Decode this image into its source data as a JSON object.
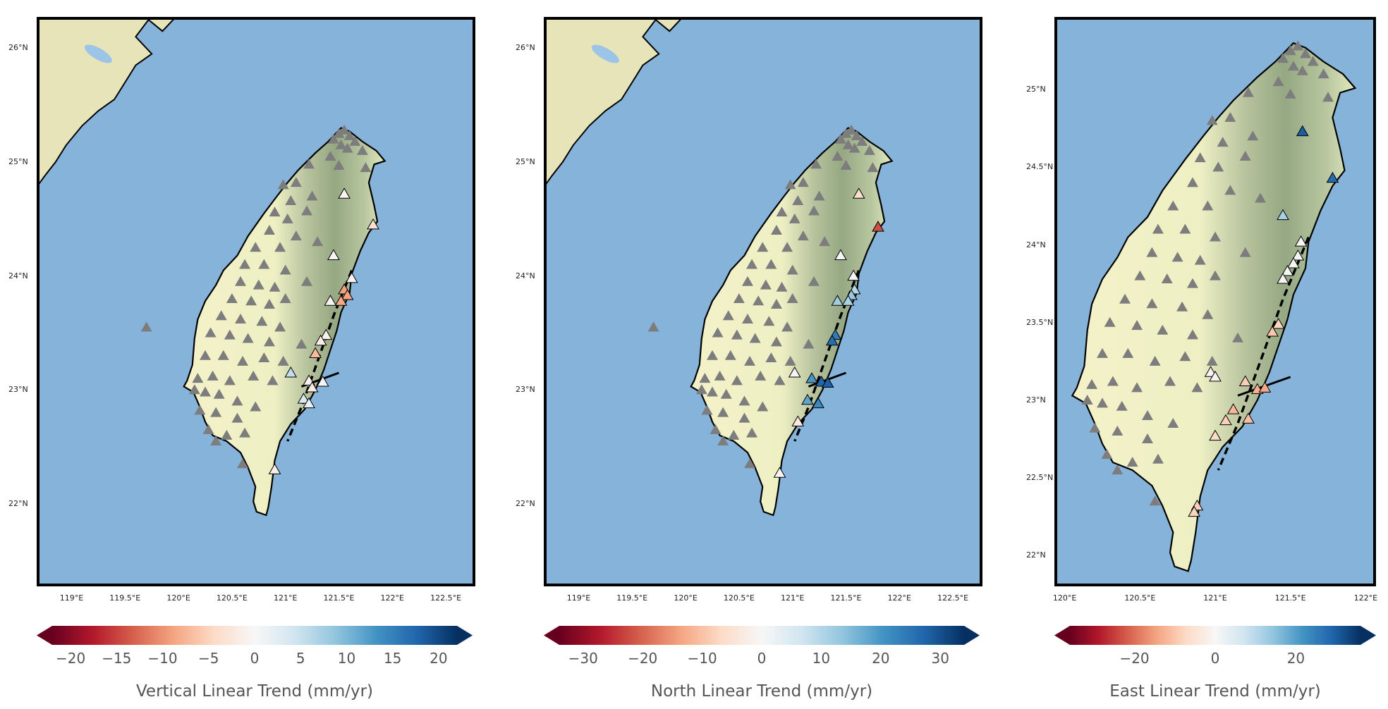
{
  "colors": {
    "ocean": "#86b3d9",
    "land": "#f3f0c7",
    "relief": "#9fae86",
    "lake": "#9cc4e6",
    "station_gray": "#7d7d7d",
    "ramp": [
      "#67001f",
      "#b2182b",
      "#d6604d",
      "#f4a582",
      "#fddbc7",
      "#f7f7f7",
      "#d1e5f0",
      "#92c5de",
      "#4393c3",
      "#2166ac",
      "#053061"
    ]
  },
  "panels": [
    {
      "id": "vertical",
      "lon_ticks": [
        "119°E",
        "119.5°E",
        "120°E",
        "120.5°E",
        "121°E",
        "121.5°E",
        "122°E",
        "122.5°E"
      ],
      "lat_ticks": [
        "22°N",
        "23°N",
        "24°N",
        "25°N",
        "26°N"
      ],
      "colorbar": {
        "ticks": [
          "−20",
          "−15",
          "−10",
          "−5",
          "0",
          "5",
          "10",
          "15",
          "20"
        ],
        "label": "Vertical Linear Trend (mm/yr)"
      },
      "colored_stations": [
        {
          "lon": 121.55,
          "lat": 24.72,
          "v": 0.5
        },
        {
          "lon": 121.82,
          "lat": 24.45,
          "v": 3.5
        },
        {
          "lon": 121.45,
          "lat": 24.18,
          "v": 0.5
        },
        {
          "lon": 121.62,
          "lat": 23.98,
          "v": 0.5
        },
        {
          "lon": 121.55,
          "lat": 23.88,
          "v": 9
        },
        {
          "lon": 121.58,
          "lat": 23.83,
          "v": 9
        },
        {
          "lon": 121.52,
          "lat": 23.78,
          "v": 8.5
        },
        {
          "lon": 121.42,
          "lat": 23.78,
          "v": 0.5
        },
        {
          "lon": 121.38,
          "lat": 23.48,
          "v": 1
        },
        {
          "lon": 121.33,
          "lat": 23.43,
          "v": 1.5
        },
        {
          "lon": 121.28,
          "lat": 23.32,
          "v": 7
        },
        {
          "lon": 121.05,
          "lat": 23.15,
          "v": -5.5
        },
        {
          "lon": 121.35,
          "lat": 23.07,
          "v": -0.5
        },
        {
          "lon": 121.22,
          "lat": 23.08,
          "v": 1
        },
        {
          "lon": 121.25,
          "lat": 23.02,
          "v": 2
        },
        {
          "lon": 121.17,
          "lat": 22.92,
          "v": -3.5
        },
        {
          "lon": 121.22,
          "lat": 22.88,
          "v": -1.5
        },
        {
          "lon": 120.9,
          "lat": 22.3,
          "v": 1.5
        }
      ]
    },
    {
      "id": "north",
      "lon_ticks": [
        "119°E",
        "119.5°E",
        "120°E",
        "120.5°E",
        "121°E",
        "121.5°E",
        "122°E",
        "122.5°E"
      ],
      "lat_ticks": [
        "22°N",
        "23°N",
        "24°N",
        "25°N",
        "26°N"
      ],
      "colorbar": {
        "ticks": [
          "−30",
          "−20",
          "−10",
          "0",
          "10",
          "20",
          "30"
        ],
        "label": "North Linear Trend (mm/yr)"
      },
      "colored_stations": [
        {
          "lon": 121.62,
          "lat": 24.72,
          "v": 6
        },
        {
          "lon": 121.8,
          "lat": 24.43,
          "v": 22
        },
        {
          "lon": 121.45,
          "lat": 24.18,
          "v": -0.5
        },
        {
          "lon": 121.57,
          "lat": 24.0,
          "v": -1
        },
        {
          "lon": 121.58,
          "lat": 23.88,
          "v": -10
        },
        {
          "lon": 121.55,
          "lat": 23.83,
          "v": -13
        },
        {
          "lon": 121.52,
          "lat": 23.78,
          "v": -11
        },
        {
          "lon": 121.42,
          "lat": 23.78,
          "v": -12
        },
        {
          "lon": 121.4,
          "lat": 23.48,
          "v": -24
        },
        {
          "lon": 121.37,
          "lat": 23.43,
          "v": -26
        },
        {
          "lon": 121.02,
          "lat": 23.15,
          "v": 0.5
        },
        {
          "lon": 121.18,
          "lat": 23.1,
          "v": -20
        },
        {
          "lon": 121.27,
          "lat": 23.07,
          "v": -27
        },
        {
          "lon": 121.33,
          "lat": 23.06,
          "v": -28
        },
        {
          "lon": 121.14,
          "lat": 22.91,
          "v": -18
        },
        {
          "lon": 121.24,
          "lat": 22.88,
          "v": -22
        },
        {
          "lon": 121.05,
          "lat": 22.72,
          "v": 4
        },
        {
          "lon": 120.88,
          "lat": 22.27,
          "v": 0.5
        }
      ]
    },
    {
      "id": "east",
      "lon_ticks": [
        "120°E",
        "120.5°E",
        "121°E",
        "121.5°E",
        "122°E"
      ],
      "lat_ticks": [
        "22°N",
        "22.5°N",
        "23°N",
        "23.5°N",
        "24°N",
        "24.5°N",
        "25°N"
      ],
      "colorbar": {
        "ticks": [
          "−20",
          "0",
          "20"
        ],
        "label": "East Linear Trend (mm/yr)"
      },
      "colored_stations": [
        {
          "lon": 121.58,
          "lat": 24.73,
          "v": -30
        },
        {
          "lon": 121.78,
          "lat": 24.43,
          "v": -28
        },
        {
          "lon": 121.45,
          "lat": 24.19,
          "v": -12
        },
        {
          "lon": 121.57,
          "lat": 24.02,
          "v": 0.5
        },
        {
          "lon": 121.55,
          "lat": 23.93,
          "v": -1
        },
        {
          "lon": 121.52,
          "lat": 23.88,
          "v": 0.5
        },
        {
          "lon": 121.48,
          "lat": 23.83,
          "v": 0
        },
        {
          "lon": 121.45,
          "lat": 23.78,
          "v": 0.5
        },
        {
          "lon": 121.42,
          "lat": 23.49,
          "v": 8
        },
        {
          "lon": 121.38,
          "lat": 23.44,
          "v": 10
        },
        {
          "lon": 120.97,
          "lat": 23.18,
          "v": 0.5
        },
        {
          "lon": 121.0,
          "lat": 23.15,
          "v": 1
        },
        {
          "lon": 121.2,
          "lat": 23.12,
          "v": 9
        },
        {
          "lon": 121.28,
          "lat": 23.07,
          "v": 13
        },
        {
          "lon": 121.33,
          "lat": 23.08,
          "v": 14
        },
        {
          "lon": 121.12,
          "lat": 22.94,
          "v": 12
        },
        {
          "lon": 121.22,
          "lat": 22.88,
          "v": 11
        },
        {
          "lon": 121.07,
          "lat": 22.87,
          "v": 9
        },
        {
          "lon": 121.0,
          "lat": 22.77,
          "v": 7
        },
        {
          "lon": 120.88,
          "lat": 22.32,
          "v": 9
        },
        {
          "lon": 120.86,
          "lat": 22.28,
          "v": 8
        }
      ]
    }
  ],
  "gray_stations": [
    [
      121.5,
      25.25
    ],
    [
      121.55,
      25.28
    ],
    [
      121.6,
      25.23
    ],
    [
      121.45,
      25.2
    ],
    [
      121.65,
      25.18
    ],
    [
      121.52,
      25.15
    ],
    [
      121.58,
      25.12
    ],
    [
      121.72,
      25.1
    ],
    [
      121.42,
      25.05
    ],
    [
      121.5,
      24.97
    ],
    [
      121.75,
      24.95
    ],
    [
      121.22,
      24.98
    ],
    [
      120.98,
      24.8
    ],
    [
      121.1,
      24.82
    ],
    [
      121.25,
      24.7
    ],
    [
      121.05,
      24.66
    ],
    [
      120.9,
      24.56
    ],
    [
      121.2,
      24.57
    ],
    [
      121.02,
      24.5
    ],
    [
      120.85,
      24.4
    ],
    [
      121.1,
      24.35
    ],
    [
      120.72,
      24.25
    ],
    [
      120.95,
      24.25
    ],
    [
      121.3,
      24.3
    ],
    [
      120.62,
      24.1
    ],
    [
      120.8,
      24.1
    ],
    [
      121.0,
      24.05
    ],
    [
      120.58,
      23.95
    ],
    [
      120.75,
      23.92
    ],
    [
      120.9,
      23.9
    ],
    [
      121.2,
      23.95
    ],
    [
      120.5,
      23.8
    ],
    [
      120.68,
      23.78
    ],
    [
      120.85,
      23.75
    ],
    [
      121.0,
      23.8
    ],
    [
      120.4,
      23.65
    ],
    [
      120.58,
      23.62
    ],
    [
      120.78,
      23.6
    ],
    [
      120.95,
      23.55
    ],
    [
      120.3,
      23.5
    ],
    [
      120.48,
      23.48
    ],
    [
      120.65,
      23.45
    ],
    [
      120.85,
      23.42
    ],
    [
      121.15,
      23.4
    ],
    [
      120.25,
      23.3
    ],
    [
      120.42,
      23.3
    ],
    [
      120.6,
      23.25
    ],
    [
      120.8,
      23.28
    ],
    [
      120.98,
      23.25
    ],
    [
      120.18,
      23.1
    ],
    [
      120.32,
      23.12
    ],
    [
      120.48,
      23.08
    ],
    [
      120.7,
      23.12
    ],
    [
      120.88,
      23.08
    ],
    [
      120.15,
      23.0
    ],
    [
      120.25,
      22.98
    ],
    [
      120.38,
      22.96
    ],
    [
      120.55,
      22.9
    ],
    [
      120.72,
      22.85
    ],
    [
      120.2,
      22.82
    ],
    [
      120.35,
      22.8
    ],
    [
      120.55,
      22.75
    ],
    [
      120.28,
      22.65
    ],
    [
      120.45,
      22.6
    ],
    [
      120.62,
      22.62
    ],
    [
      120.35,
      22.55
    ],
    [
      120.6,
      22.35
    ],
    [
      119.7,
      23.55
    ]
  ]
}
